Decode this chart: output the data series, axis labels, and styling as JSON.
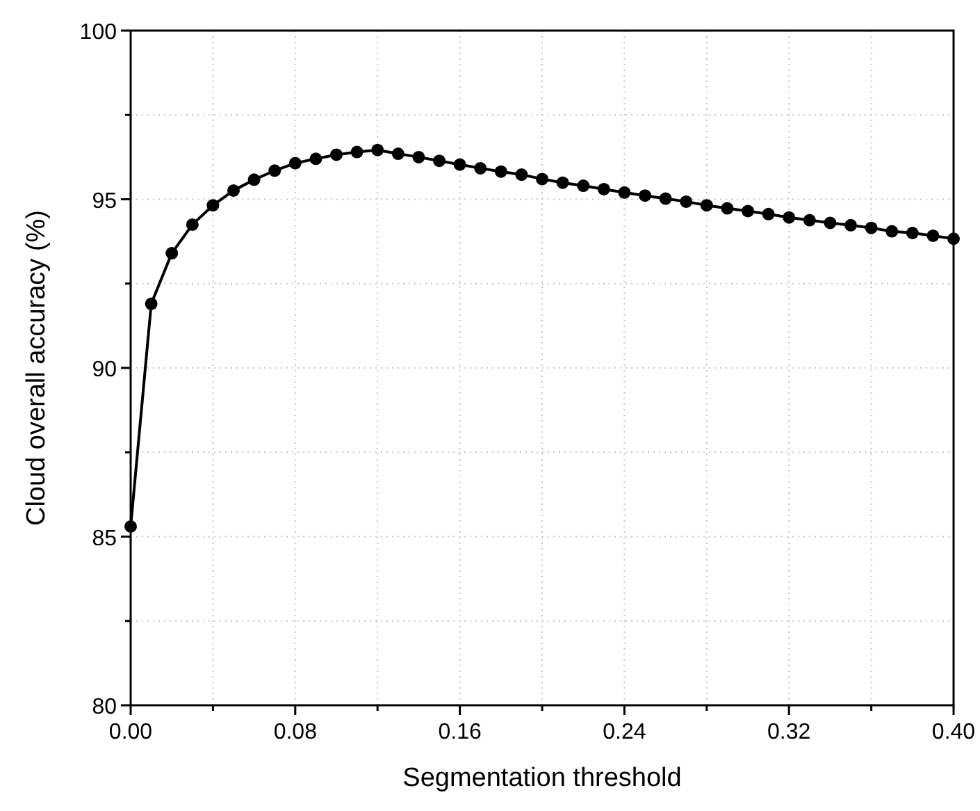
{
  "chart_data": {
    "type": "line",
    "xlabel": "Segmentation threshold",
    "ylabel": "Cloud overall accuracy (%)",
    "x": [
      0,
      0.01,
      0.02,
      0.03,
      0.04,
      0.05,
      0.06,
      0.07,
      0.08,
      0.09,
      0.1,
      0.11,
      0.12,
      0.13,
      0.14,
      0.15,
      0.16,
      0.17,
      0.18,
      0.19,
      0.2,
      0.21,
      0.22,
      0.23,
      0.24,
      0.25,
      0.26,
      0.27,
      0.28,
      0.29,
      0.3,
      0.31,
      0.32,
      0.33,
      0.34,
      0.35,
      0.36,
      0.37,
      0.38,
      0.39,
      0.4
    ],
    "series": [
      {
        "color": "#000000",
        "values": [
          85.3,
          91.9,
          93.4,
          94.25,
          94.82,
          95.26,
          95.58,
          95.85,
          96.07,
          96.2,
          96.32,
          96.4,
          96.46,
          96.35,
          96.25,
          96.14,
          96.03,
          95.92,
          95.82,
          95.73,
          95.6,
          95.49,
          95.4,
          95.3,
          95.2,
          95.11,
          95.02,
          94.93,
          94.82,
          94.73,
          94.65,
          94.56,
          94.46,
          94.38,
          94.3,
          94.23,
          94.15,
          94.05,
          94.0,
          93.92,
          93.83
        ]
      }
    ],
    "xlim": [
      0,
      0.4
    ],
    "ylim": [
      80,
      100
    ],
    "xticks": [
      {
        "value": 0,
        "label": "0.00"
      },
      {
        "value": 0.04,
        "label": null
      },
      {
        "value": 0.08,
        "label": "0.08"
      },
      {
        "value": 0.12,
        "label": null
      },
      {
        "value": 0.16,
        "label": "0.16"
      },
      {
        "value": 0.2,
        "label": null
      },
      {
        "value": 0.24,
        "label": "0.24"
      },
      {
        "value": 0.28,
        "label": null
      },
      {
        "value": 0.32,
        "label": "0.32"
      },
      {
        "value": 0.36,
        "label": null
      },
      {
        "value": 0.4,
        "label": "0.40"
      }
    ],
    "yticks": [
      80,
      {
        "value": 82.5,
        "label": null
      },
      85,
      {
        "value": 87.5,
        "label": null
      },
      90,
      {
        "value": 92.5,
        "label": null
      },
      95,
      {
        "value": 97.5,
        "label": null
      },
      100
    ],
    "grid": true,
    "marker": "circle",
    "line_style": "solid"
  }
}
